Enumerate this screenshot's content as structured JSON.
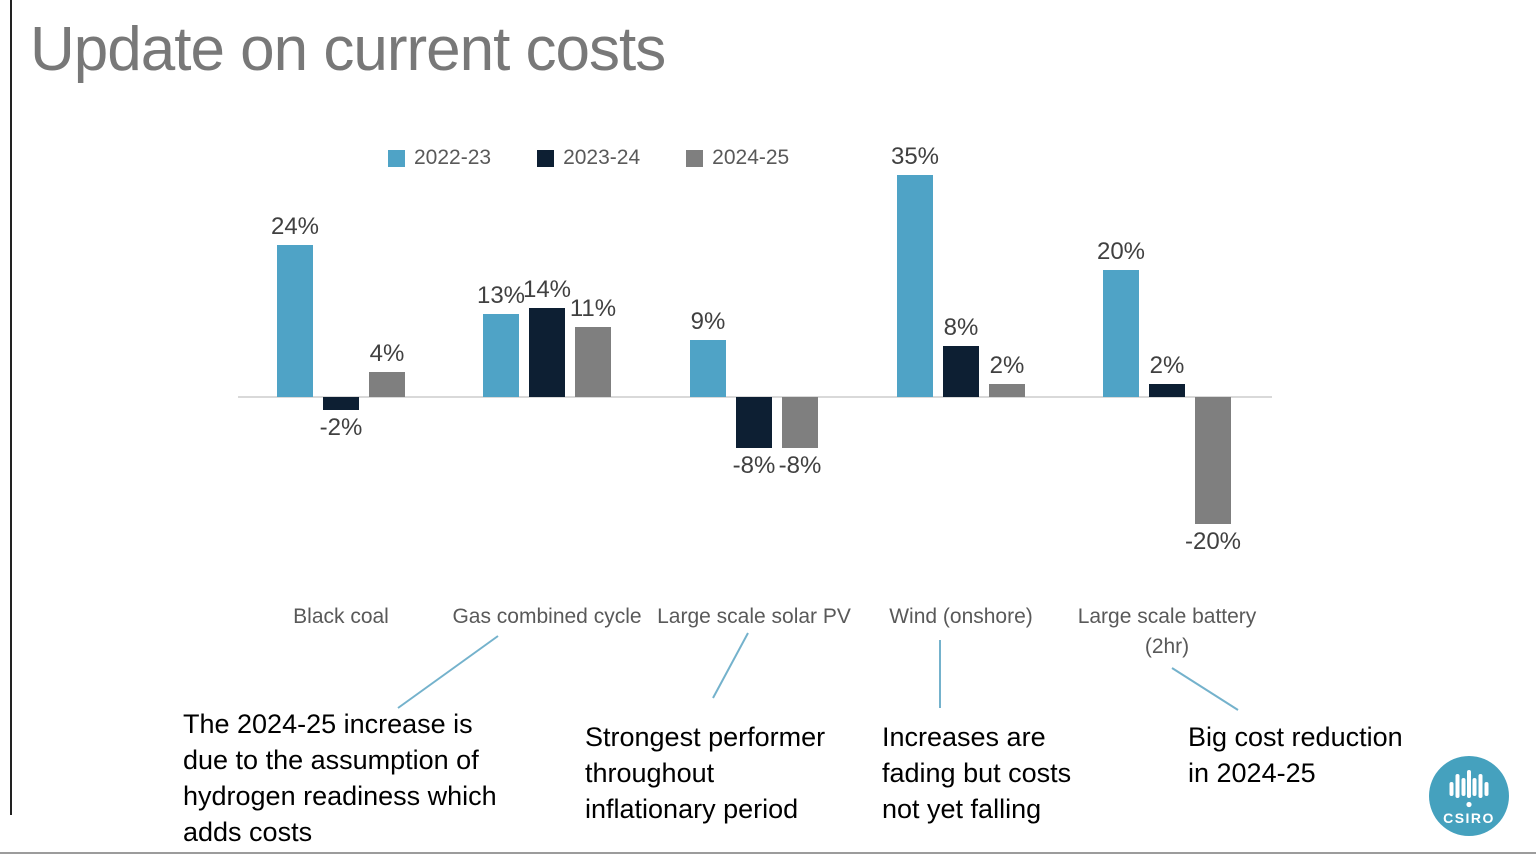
{
  "slide": {
    "title": "Update on current costs"
  },
  "chart_data": {
    "type": "bar",
    "title": "Update on current costs",
    "categories": [
      "Black coal",
      "Gas combined cycle",
      "Large scale solar PV",
      "Wind (onshore)",
      "Large scale battery (2hr)"
    ],
    "category_display": [
      "Black coal",
      "Gas combined cycle",
      "Large scale solar PV",
      "Wind (onshore)",
      "Large scale battery\n(2hr)"
    ],
    "series": [
      {
        "name": "2022-23",
        "color": "#4fa3c6",
        "values": [
          24,
          13,
          9,
          35,
          20
        ],
        "value_labels": [
          "24%",
          "13%",
          "9%",
          "35%",
          "20%"
        ]
      },
      {
        "name": "2023-24",
        "color": "#0d1f33",
        "values": [
          -2,
          14,
          -8,
          8,
          2
        ],
        "value_labels": [
          "-2%",
          "14%",
          "-8%",
          "8%",
          "2%"
        ]
      },
      {
        "name": "2024-25",
        "color": "#7f7f7f",
        "values": [
          4,
          11,
          -8,
          2,
          -20
        ],
        "value_labels": [
          "4%",
          "11%",
          "-8%",
          "2%",
          "-20%"
        ]
      }
    ],
    "xlabel": "",
    "ylabel": "",
    "ylim": [
      -25,
      40
    ],
    "baseline": 0,
    "grid": false,
    "legend_position": "top",
    "value_label_format": "percent"
  },
  "annotations": [
    {
      "text": "The 2024-25 increase is\ndue to the assumption of\nhydrogen readiness which\nadds costs",
      "target": "Gas combined cycle"
    },
    {
      "text": "Strongest performer\nthroughout\ninflationary period",
      "target": "Large scale solar PV"
    },
    {
      "text": "Increases are\nfading but costs\nnot yet falling",
      "target": "Wind (onshore)"
    },
    {
      "text": "Big cost reduction\nin 2024-25",
      "target": "Large scale battery (2hr)"
    }
  ],
  "logo": {
    "text": "CSIRO",
    "color": "#45a1be"
  },
  "colors": {
    "title_gray": "#787878",
    "axis_line": "#d9d9d9",
    "callout_blue": "#74b2cc",
    "label_gray": "#595959",
    "value_label": "#404040"
  }
}
